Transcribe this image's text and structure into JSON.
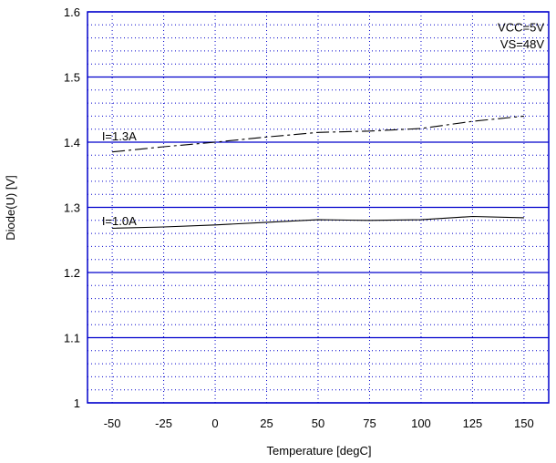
{
  "chart_data": {
    "type": "line",
    "title": "",
    "xlabel": "Temperature [degC]",
    "ylabel": "Diode(U)  [V]",
    "xlim": [
      -62,
      162
    ],
    "ylim": [
      1.0,
      1.6
    ],
    "x_ticks": [
      -50,
      -25,
      0,
      25,
      50,
      75,
      100,
      125,
      150
    ],
    "x_tick_labels": [
      "-50",
      "-25",
      "0",
      "25",
      "50",
      "75",
      "100",
      "125",
      "150"
    ],
    "y_ticks": [
      1.0,
      1.1,
      1.2,
      1.3,
      1.4,
      1.5,
      1.6
    ],
    "y_tick_labels": [
      "1",
      "1.1",
      "1.2",
      "1.3",
      "1.4",
      "1.5",
      "1.6"
    ],
    "grid": true,
    "frame_color": "#0000cc",
    "grid_color": "#0000cc",
    "series": [
      {
        "name": "I=1.0A",
        "line_style": "solid",
        "color": "#000000",
        "x": [
          -50,
          -25,
          0,
          25,
          50,
          75,
          100,
          125,
          150
        ],
        "y": [
          1.268,
          1.27,
          1.273,
          1.277,
          1.281,
          1.28,
          1.281,
          1.286,
          1.284
        ]
      },
      {
        "name": "I=1.3A",
        "line_style": "dash-dot",
        "color": "#000000",
        "x": [
          -50,
          -25,
          0,
          25,
          50,
          75,
          100,
          125,
          150
        ],
        "y": [
          1.385,
          1.393,
          1.4,
          1.408,
          1.415,
          1.417,
          1.421,
          1.432,
          1.44
        ]
      }
    ],
    "annotations": [
      {
        "text": "I=1.3A",
        "x": -55,
        "y": 1.41
      },
      {
        "text": "I=1.0A",
        "x": -55,
        "y": 1.28
      },
      {
        "text": "VCC=5V",
        "x": 150,
        "y": 1.577
      },
      {
        "text": "VS=48V",
        "x": 150,
        "y": 1.551
      }
    ]
  }
}
